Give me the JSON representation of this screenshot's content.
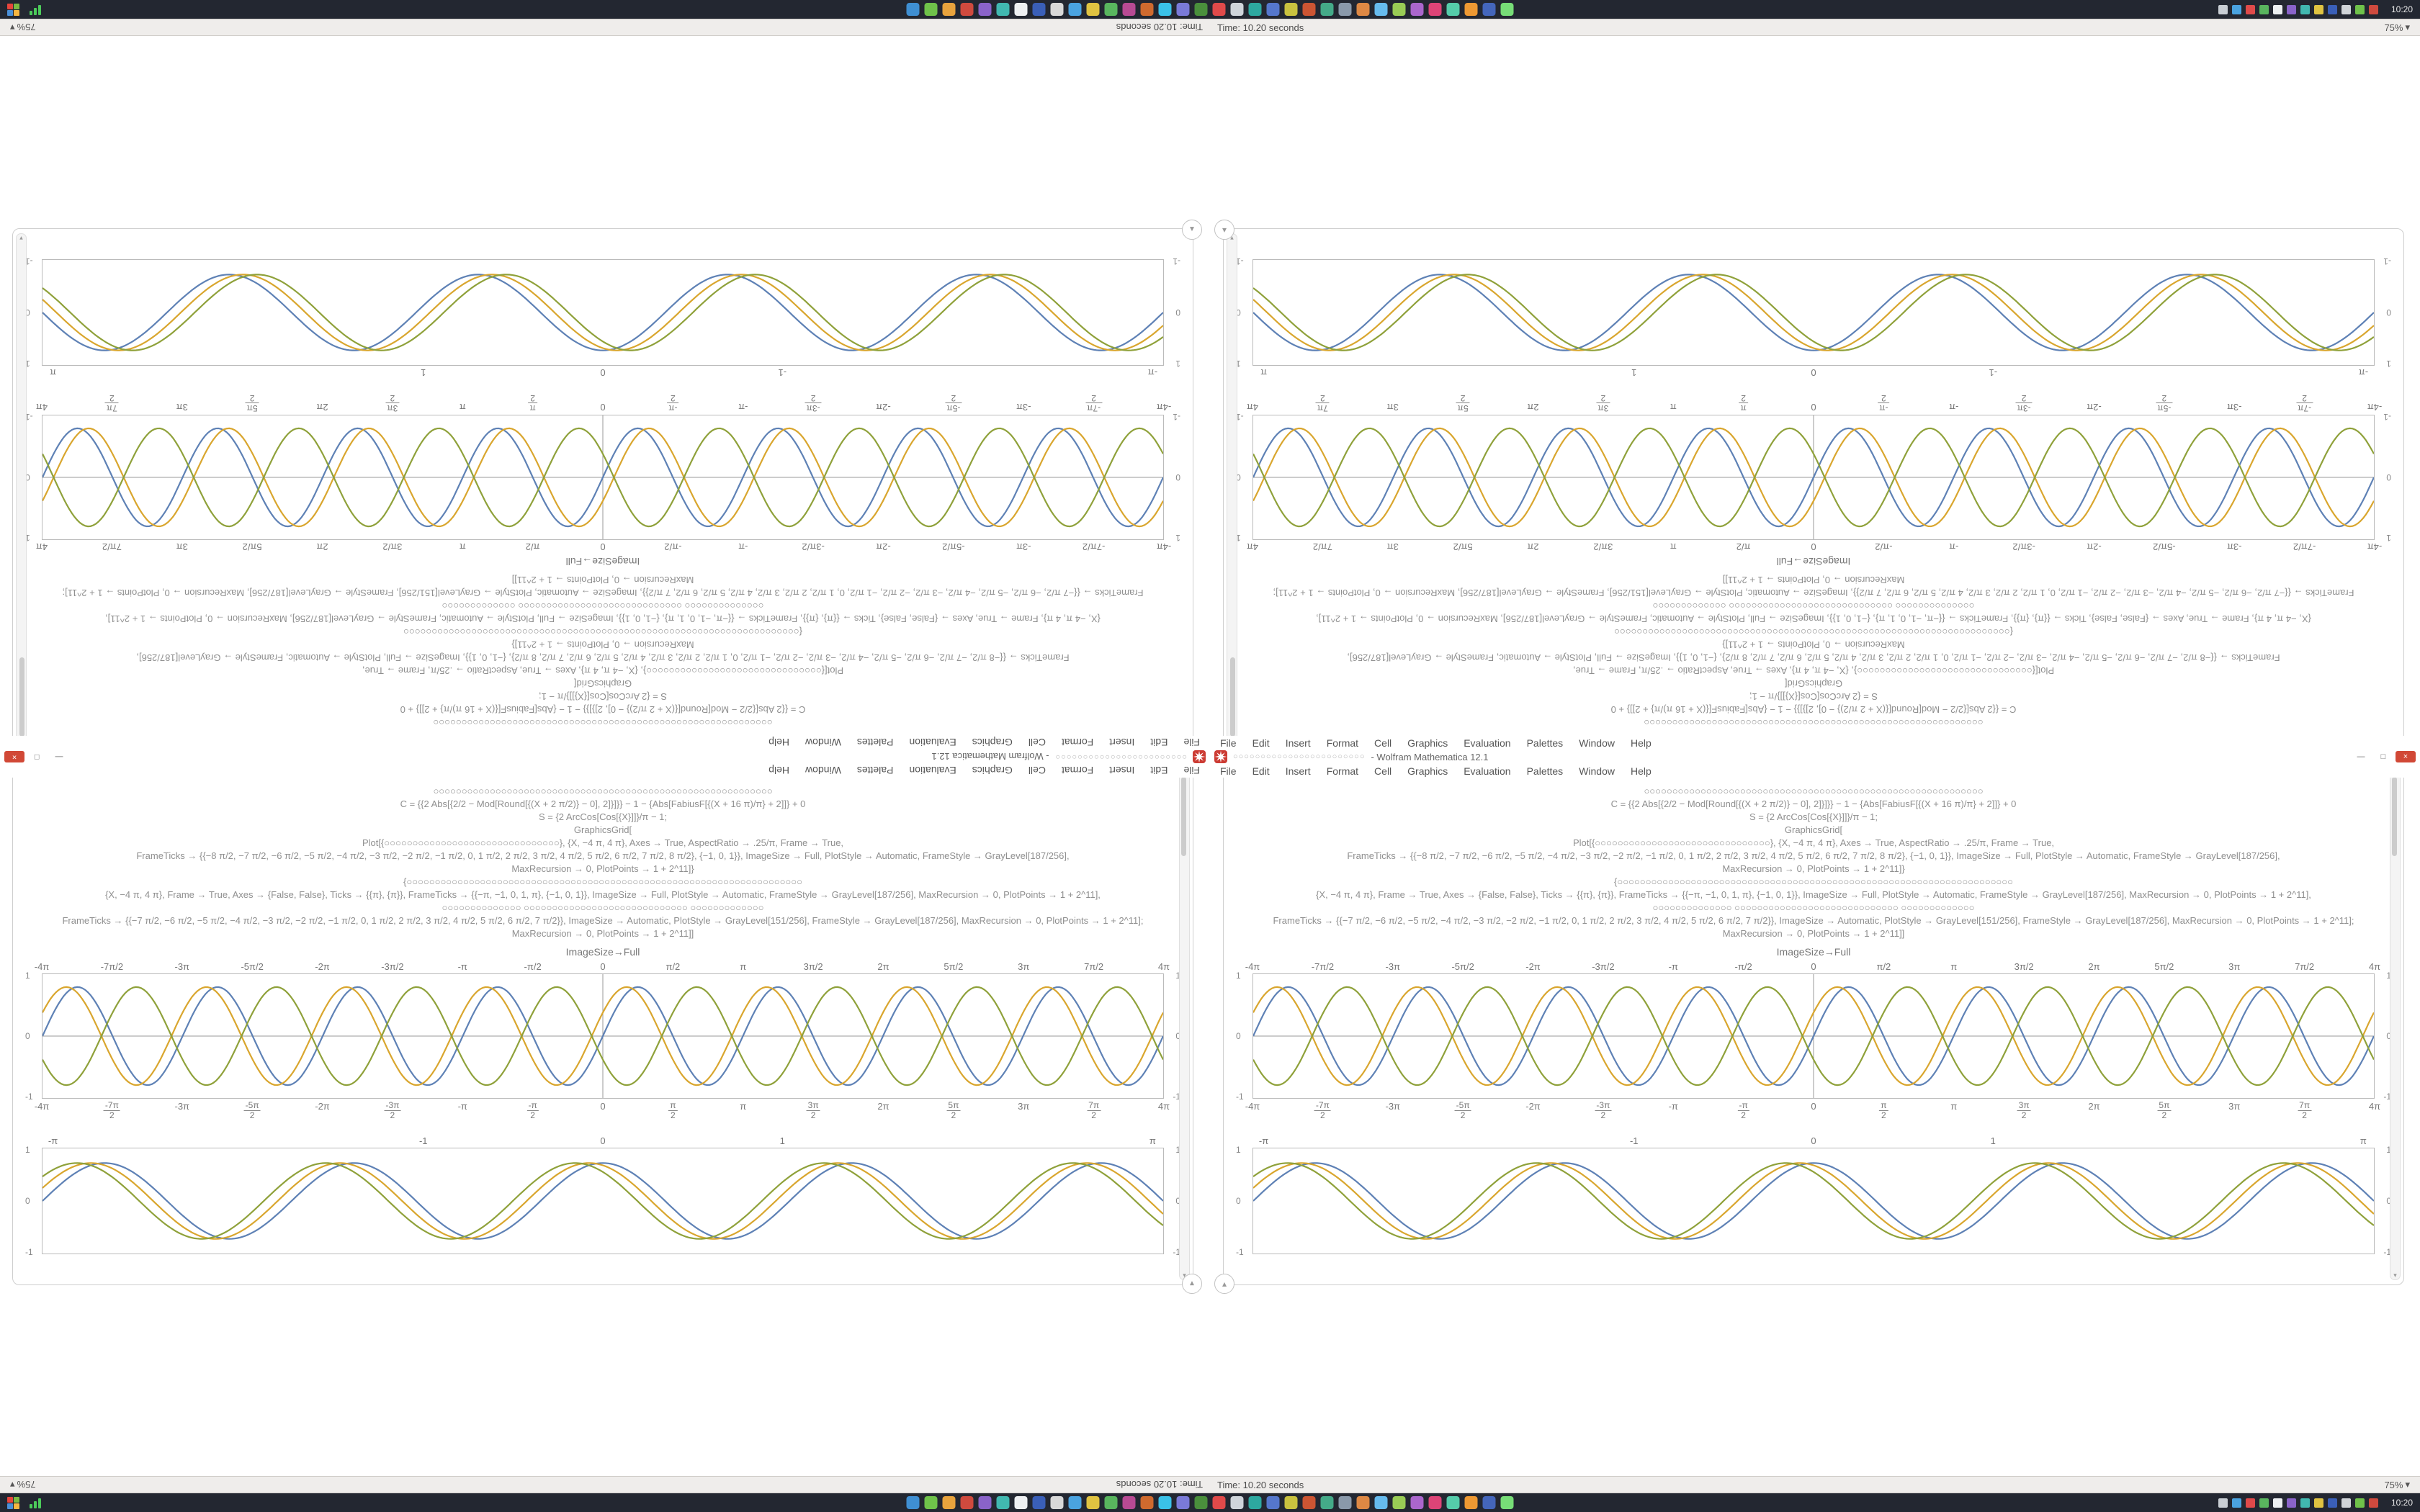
{
  "chrome": {
    "window_title": "- Wolfram Mathematica 12.1",
    "title_prefix_dots": "○○○○○○○○○○○○○○○○○○○○○○○○",
    "menu_items": [
      "File",
      "Edit",
      "Insert",
      "Format",
      "Cell",
      "Graphics",
      "Evaluation",
      "Palettes",
      "Window",
      "Help"
    ],
    "buttons": {
      "minimize": "—",
      "maximize": "□",
      "close": "×"
    },
    "corner_toggle_down": "▾",
    "corner_toggle_up": "▴",
    "scroll_up": "▴",
    "scroll_down": "▾",
    "status_time": "Time: 10.20 seconds",
    "zoom_value": "75%",
    "zoom_caret": "▾"
  },
  "taskbar": {
    "start_tiles": [
      "#e8453c",
      "#7cbb42",
      "#4a90d9",
      "#f5b642"
    ],
    "icons": [
      "#3f8fd2",
      "#6fc24a",
      "#e8a33d",
      "#cf4a3e",
      "#8a63c9",
      "#41b8b0",
      "#eef0f2",
      "#3a5fb8",
      "#d8d8d8",
      "#4aa3e0",
      "#e0c341",
      "#59b55e",
      "#b84a93",
      "#cf6a2e",
      "#3ac1e8",
      "#7a7ad8",
      "#4a8f3c",
      "#e04a4a",
      "#cfd4da",
      "#2da8a0",
      "#5577cc",
      "#c9c23f",
      "#cc5533",
      "#44aa88",
      "#8a99aa",
      "#dd8844",
      "#66bbee",
      "#99cc55",
      "#aa66cc",
      "#dd4477",
      "#55ccaa",
      "#ee9933",
      "#4466bb",
      "#77dd77"
    ],
    "tray": [
      "#c9ced4",
      "#4aa3e0",
      "#e04a4a",
      "#59b55e",
      "#eceff1",
      "#8a63c9",
      "#41b8b0",
      "#e0c341",
      "#3a5fb8",
      "#d0d4d8",
      "#6fc24a",
      "#cf4a3e"
    ],
    "clock": "10:20"
  },
  "accents": {
    "curve_blue": "#5e81b5",
    "curve_gold": "#d9a62e",
    "curve_olive": "#8fa13a",
    "frame_gray": "#bababa",
    "logo_red": "#cc3b33"
  },
  "notebook": {
    "output_caption": "ImageSize→Full",
    "code_lines": [
      "○○○○○○○○○○○○○○○○○○○○○○○○○○○○○○○○○○○○○○○○○○○○○○○○○○○○○○○○○○○○",
      "C = {{2 Abs[{2/2 − Mod[Round[{(X + 2 π/2)} − 0], 2]}]}} − 1 − {Abs[FabiusF[{(X + 16 π)/π} + 2]]} + 0",
      "S = {2 ArcCos[Cos[{X}]]}/π − 1;",
      "GraphicsGrid[",
      "Plot[{○○○○○○○○○○○○○○○○○○○○○○○○○○○○○○○}, {X, −4 π, 4 π}, Axes → True, AspectRatio → .25/π, Frame → True,",
      "FrameTicks → {{−8 π/2, −7 π/2, −6 π/2, −5 π/2, −4 π/2, −3 π/2, −2 π/2, −1 π/2, 0, 1 π/2, 2 π/2, 3 π/2, 4 π/2, 5 π/2, 6 π/2, 7 π/2, 8 π/2}, {−1, 0, 1}}, ImageSize → Full, PlotStyle → Automatic, FrameStyle → GrayLevel[187/256],",
      "MaxRecursion → 0, PlotPoints → 1 + 2^11]}",
      "{○○○○○○○○○○○○○○○○○○○○○○○○○○○○○○○○○○○○○○○○○○○○○○○○○○○○○○○○○○○○○○○○○○○○○○",
      "{X, −4 π, 4 π}, Frame → True, Axes → {False, False}, Ticks → {{π}, {π}}, FrameTicks → {{−π, −1, 0, 1, π}, {−1, 0, 1}}, ImageSize → Full, PlotStyle → Automatic, FrameStyle → GrayLevel[187/256], MaxRecursion → 0, PlotPoints → 1 + 2^11],",
      "○○○○○○○○○○○○○○  ○○○○○○○○○○○○○○○○○○○○○○○○○○○○○  ○○○○○○○○○○○○○",
      "FrameTicks → {{−7 π/2, −6 π/2, −5 π/2, −4 π/2, −3 π/2, −2 π/2, −1 π/2, 0, 1 π/2, 2 π/2, 3 π/2, 4 π/2, 5 π/2, 6 π/2, 7 π/2}}, ImageSize → Automatic, PlotStyle → GrayLevel[151/256], FrameStyle → GrayLevel[187/256], MaxRecursion → 0, PlotPoints → 1 + 2^11];",
      "MaxRecursion → 0, PlotPoints → 1 + 2^11]]"
    ],
    "plots": {
      "big": {
        "cycles": 8,
        "amp": 0.9,
        "axes": true,
        "yticks": [
          "1",
          "0",
          "-1"
        ],
        "series": [
          {
            "color": "#5e81b5",
            "phase": 0
          },
          {
            "color": "#d9a62e",
            "phase": 0.5
          },
          {
            "color": "#8fa13a",
            "phase": 3.64
          }
        ],
        "ticks": [
          {
            "t": "-4π",
            "p": 0
          },
          {
            "t": "-7π/2",
            "p": 6.25
          },
          {
            "t": "-3π",
            "p": 12.5
          },
          {
            "t": "-5π/2",
            "p": 18.75
          },
          {
            "t": "-2π",
            "p": 25
          },
          {
            "t": "-3π/2",
            "p": 31.25
          },
          {
            "t": "-π",
            "p": 37.5
          },
          {
            "t": "-π/2",
            "p": 43.75
          },
          {
            "t": "0",
            "p": 50
          },
          {
            "t": "π/2",
            "p": 56.25
          },
          {
            "t": "π",
            "p": 62.5
          },
          {
            "t": "3π/2",
            "p": 68.75
          },
          {
            "t": "2π",
            "p": 75
          },
          {
            "t": "5π/2",
            "p": 81.25
          },
          {
            "t": "3π",
            "p": 87.5
          },
          {
            "t": "7π/2",
            "p": 93.75
          },
          {
            "t": "4π",
            "p": 100
          }
        ]
      },
      "small": {
        "cycles": 4.5,
        "amp": 0.82,
        "axes": false,
        "yticks": [
          "1",
          "0",
          "-1"
        ],
        "series": [
          {
            "color": "#5e81b5",
            "phase": 0
          },
          {
            "color": "#d9a62e",
            "phase": 0.35
          },
          {
            "color": "#8fa13a",
            "phase": 0.7
          }
        ],
        "ticks": [
          {
            "t": "-π",
            "p": 1
          },
          {
            "t": "-1",
            "p": 34
          },
          {
            "t": "0",
            "p": 50
          },
          {
            "t": "1",
            "p": 66
          },
          {
            "t": "π",
            "p": 99
          }
        ]
      }
    }
  }
}
